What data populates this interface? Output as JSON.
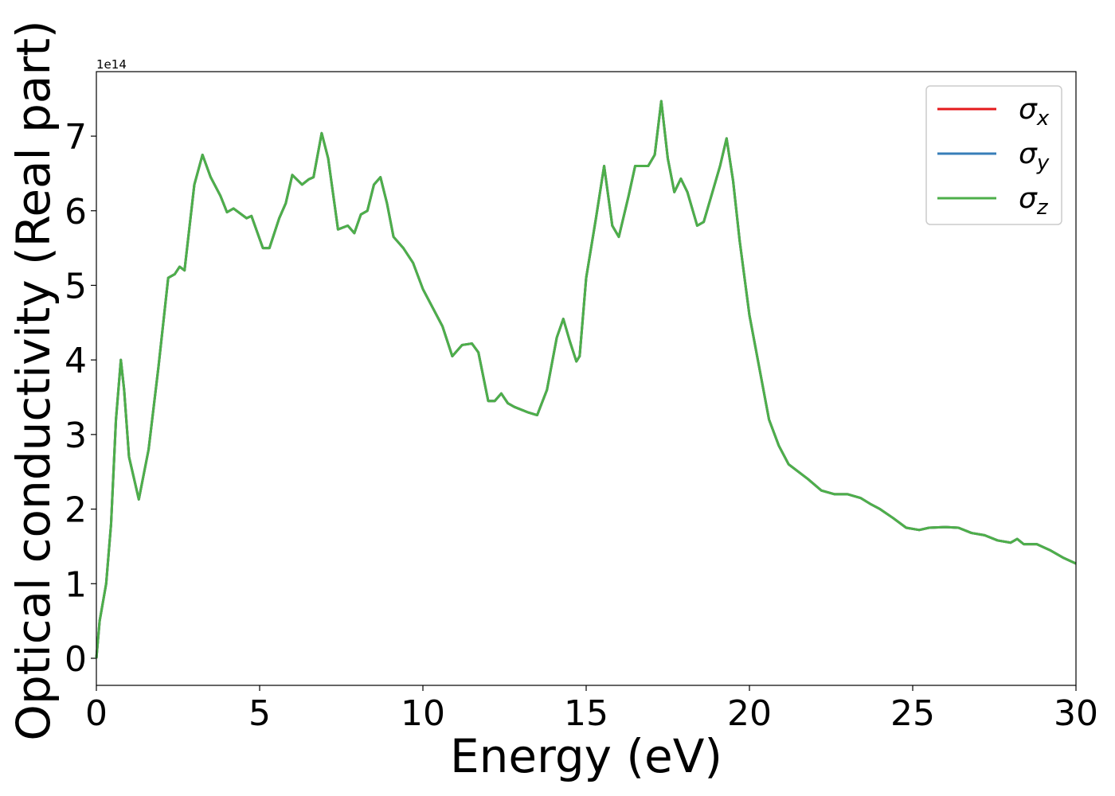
{
  "chart_data": {
    "type": "line",
    "xlabel": "Energy (eV)",
    "ylabel": "Optical conductivity (Real part)",
    "y_offset_label": "1e14",
    "x": [
      0,
      0.1,
      0.3,
      0.45,
      0.6,
      0.75,
      0.85,
      1.0,
      1.3,
      1.6,
      1.9,
      2.2,
      2.4,
      2.55,
      2.7,
      3.0,
      3.25,
      3.5,
      3.8,
      4.0,
      4.2,
      4.6,
      4.75,
      5.1,
      5.3,
      5.6,
      5.8,
      6.0,
      6.3,
      6.5,
      6.65,
      6.9,
      7.1,
      7.4,
      7.7,
      7.9,
      8.1,
      8.3,
      8.5,
      8.7,
      8.9,
      9.1,
      9.4,
      9.7,
      10.0,
      10.3,
      10.6,
      10.9,
      11.2,
      11.5,
      11.7,
      12.0,
      12.2,
      12.4,
      12.6,
      12.8,
      13.2,
      13.5,
      13.8,
      14.1,
      14.3,
      14.5,
      14.7,
      14.8,
      15.0,
      15.3,
      15.55,
      15.8,
      16.0,
      16.3,
      16.5,
      16.7,
      16.9,
      17.1,
      17.3,
      17.5,
      17.7,
      17.9,
      18.1,
      18.4,
      18.6,
      18.9,
      19.1,
      19.3,
      19.5,
      19.7,
      20.0,
      20.3,
      20.6,
      20.9,
      21.2,
      21.5,
      21.8,
      22.2,
      22.6,
      23.0,
      23.4,
      23.7,
      24.0,
      24.4,
      24.8,
      25.2,
      25.5,
      26.0,
      26.4,
      26.8,
      27.2,
      27.6,
      28.0,
      28.2,
      28.4,
      28.8,
      29.2,
      29.6,
      30.0
    ],
    "series": [
      {
        "name": "σx",
        "color": "#e41a1c",
        "values": [
          0,
          0.5,
          1.0,
          1.8,
          3.2,
          4.0,
          3.6,
          2.7,
          2.13,
          2.8,
          3.9,
          5.1,
          5.15,
          5.25,
          5.2,
          6.35,
          6.75,
          6.45,
          6.2,
          5.98,
          6.03,
          5.9,
          5.93,
          5.5,
          5.5,
          5.9,
          6.1,
          6.48,
          6.35,
          6.42,
          6.45,
          7.04,
          6.7,
          5.75,
          5.8,
          5.7,
          5.95,
          6.0,
          6.35,
          6.45,
          6.1,
          5.65,
          5.5,
          5.3,
          4.95,
          4.7,
          4.45,
          4.05,
          4.2,
          4.22,
          4.1,
          3.45,
          3.45,
          3.55,
          3.42,
          3.37,
          3.3,
          3.26,
          3.6,
          4.3,
          4.55,
          4.25,
          3.98,
          4.05,
          5.1,
          5.9,
          6.6,
          5.8,
          5.65,
          6.2,
          6.6,
          6.6,
          6.6,
          6.75,
          7.47,
          6.7,
          6.25,
          6.43,
          6.25,
          5.8,
          5.85,
          6.3,
          6.6,
          6.97,
          6.4,
          5.6,
          4.6,
          3.9,
          3.2,
          2.85,
          2.6,
          2.5,
          2.4,
          2.25,
          2.2,
          2.2,
          2.15,
          2.07,
          2.0,
          1.88,
          1.75,
          1.72,
          1.75,
          1.76,
          1.75,
          1.68,
          1.65,
          1.58,
          1.55,
          1.6,
          1.53,
          1.53,
          1.45,
          1.35,
          1.27
        ]
      },
      {
        "name": "σy",
        "color": "#377eb8",
        "values": [
          0,
          0.5,
          1.0,
          1.8,
          3.2,
          4.0,
          3.6,
          2.7,
          2.13,
          2.8,
          3.9,
          5.1,
          5.15,
          5.25,
          5.2,
          6.35,
          6.75,
          6.45,
          6.2,
          5.98,
          6.03,
          5.9,
          5.93,
          5.5,
          5.5,
          5.9,
          6.1,
          6.48,
          6.35,
          6.42,
          6.45,
          7.04,
          6.7,
          5.75,
          5.8,
          5.7,
          5.95,
          6.0,
          6.35,
          6.45,
          6.1,
          5.65,
          5.5,
          5.3,
          4.95,
          4.7,
          4.45,
          4.05,
          4.2,
          4.22,
          4.1,
          3.45,
          3.45,
          3.55,
          3.42,
          3.37,
          3.3,
          3.26,
          3.6,
          4.3,
          4.55,
          4.25,
          3.98,
          4.05,
          5.1,
          5.9,
          6.6,
          5.8,
          5.65,
          6.2,
          6.6,
          6.6,
          6.6,
          6.75,
          7.47,
          6.7,
          6.25,
          6.43,
          6.25,
          5.8,
          5.85,
          6.3,
          6.6,
          6.97,
          6.4,
          5.6,
          4.6,
          3.9,
          3.2,
          2.85,
          2.6,
          2.5,
          2.4,
          2.25,
          2.2,
          2.2,
          2.15,
          2.07,
          2.0,
          1.88,
          1.75,
          1.72,
          1.75,
          1.76,
          1.75,
          1.68,
          1.65,
          1.58,
          1.55,
          1.6,
          1.53,
          1.53,
          1.45,
          1.35,
          1.27
        ]
      },
      {
        "name": "σz",
        "color": "#4daf4a",
        "values": [
          0,
          0.5,
          1.0,
          1.8,
          3.2,
          4.0,
          3.6,
          2.7,
          2.13,
          2.8,
          3.9,
          5.1,
          5.15,
          5.25,
          5.2,
          6.35,
          6.75,
          6.45,
          6.2,
          5.98,
          6.03,
          5.9,
          5.93,
          5.5,
          5.5,
          5.9,
          6.1,
          6.48,
          6.35,
          6.42,
          6.45,
          7.04,
          6.7,
          5.75,
          5.8,
          5.7,
          5.95,
          6.0,
          6.35,
          6.45,
          6.1,
          5.65,
          5.5,
          5.3,
          4.95,
          4.7,
          4.45,
          4.05,
          4.2,
          4.22,
          4.1,
          3.45,
          3.45,
          3.55,
          3.42,
          3.37,
          3.3,
          3.26,
          3.6,
          4.3,
          4.55,
          4.25,
          3.98,
          4.05,
          5.1,
          5.9,
          6.6,
          5.8,
          5.65,
          6.2,
          6.6,
          6.6,
          6.6,
          6.75,
          7.47,
          6.7,
          6.25,
          6.43,
          6.25,
          5.8,
          5.85,
          6.3,
          6.6,
          6.97,
          6.4,
          5.6,
          4.6,
          3.9,
          3.2,
          2.85,
          2.6,
          2.5,
          2.4,
          2.25,
          2.2,
          2.2,
          2.15,
          2.07,
          2.0,
          1.88,
          1.75,
          1.72,
          1.75,
          1.76,
          1.75,
          1.68,
          1.65,
          1.58,
          1.55,
          1.6,
          1.53,
          1.53,
          1.45,
          1.35,
          1.27
        ]
      }
    ],
    "xlim": [
      0,
      30
    ],
    "xticks": [
      0,
      5,
      10,
      15,
      20,
      25,
      30
    ],
    "ylim": [
      -0.363,
      7.865
    ],
    "yticks": [
      0,
      1,
      2,
      3,
      4,
      5,
      6,
      7
    ],
    "legend": "upper right",
    "grid": false
  }
}
